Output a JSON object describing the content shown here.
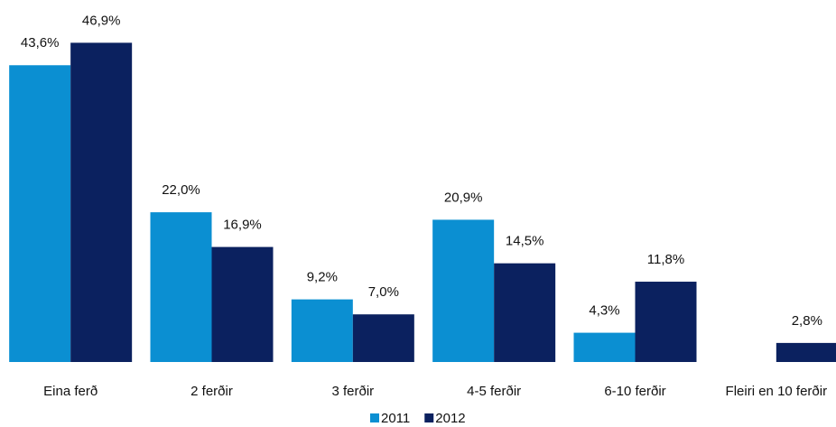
{
  "chart_data": {
    "type": "bar",
    "categories": [
      "Eina ferð",
      "2 ferðir",
      "3 ferðir",
      "4-5 ferðir",
      "6-10 ferðir",
      "Fleiri en 10 ferðir"
    ],
    "series": [
      {
        "name": "2011",
        "color": "#0b8fd2",
        "values": [
          43.6,
          22.0,
          9.2,
          20.9,
          4.3,
          null
        ],
        "value_labels": [
          "43,6%",
          "22,0%",
          "9,2%",
          "20,9%",
          "4,3%",
          null
        ]
      },
      {
        "name": "2012",
        "color": "#0b215f",
        "values": [
          46.9,
          16.9,
          7.0,
          14.5,
          11.8,
          2.8
        ],
        "value_labels": [
          "46,9%",
          "16,9%",
          "7,0%",
          "14,5%",
          "11,8%",
          "2,8%"
        ]
      }
    ],
    "ylim": [
      0,
      50
    ],
    "legend": "bottom"
  }
}
